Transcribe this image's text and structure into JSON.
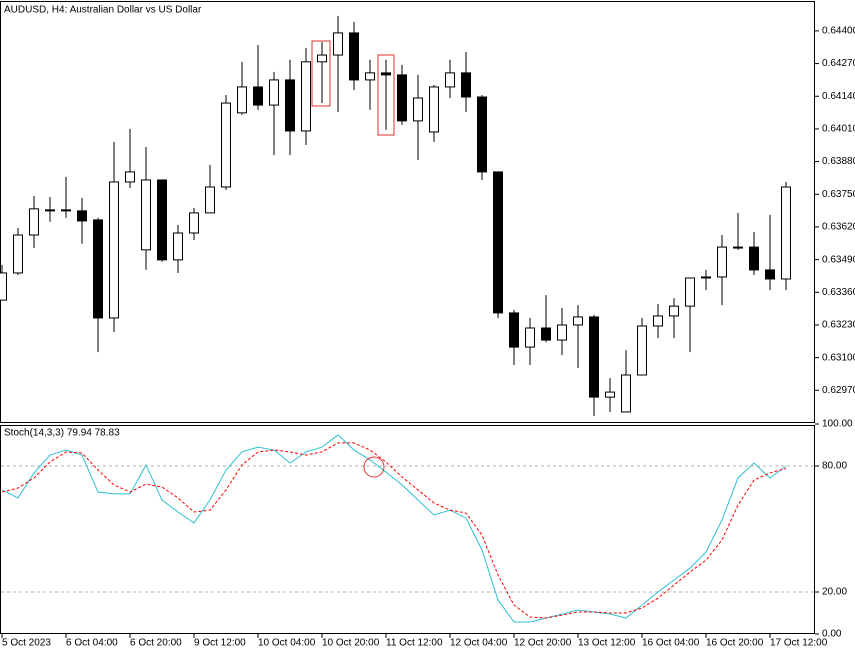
{
  "chart_data": [
    {
      "type": "candlestick",
      "title": "AUDUSD, H4:  Australian Dollar vs US Dollar",
      "up_color": "#ffffff",
      "down_color": "#000000",
      "open": [
        0.63329,
        0.63437,
        0.63588,
        0.63688,
        0.63688,
        0.63684,
        0.63648,
        0.63258,
        0.63799,
        0.63529,
        0.63807,
        0.63489,
        0.63596,
        0.63676,
        0.63779,
        0.64074,
        0.64177,
        0.64105,
        0.64205,
        0.64002,
        0.64277,
        0.64304,
        0.64392,
        0.64205,
        0.64233,
        0.64225,
        0.64042,
        0.63998,
        0.64177,
        0.64233,
        0.64137,
        0.63839,
        0.63278,
        0.63142,
        0.63218,
        0.6317,
        0.6323,
        0.63262,
        0.62943,
        0.62884,
        0.63031,
        0.63226,
        0.63266,
        0.63305,
        0.63421,
        0.63421,
        0.6354,
        0.6354,
        0.63449,
        0.63413
      ],
      "high": [
        0.63469,
        0.63616,
        0.63743,
        0.63739,
        0.63819,
        0.63735,
        0.63656,
        0.63958,
        0.6401,
        0.63938,
        0.63807,
        0.63628,
        0.63696,
        0.63867,
        0.64145,
        0.64277,
        0.64344,
        0.64237,
        0.64285,
        0.64332,
        0.64356,
        0.6446,
        0.64436,
        0.64285,
        0.64285,
        0.64265,
        0.64225,
        0.64185,
        0.64285,
        0.64316,
        0.64145,
        0.63839,
        0.6329,
        0.63258,
        0.63349,
        0.63298,
        0.63309,
        0.6327,
        0.63019,
        0.6313,
        0.63258,
        0.63313,
        0.63337,
        0.63417,
        0.63449,
        0.63588,
        0.63676,
        0.636,
        0.63668,
        0.63799
      ],
      "low": [
        0.63329,
        0.63429,
        0.63537,
        0.6364,
        0.63656,
        0.63553,
        0.63122,
        0.63202,
        0.63775,
        0.63449,
        0.63481,
        0.63437,
        0.63568,
        0.63676,
        0.63767,
        0.64066,
        0.64086,
        0.63906,
        0.63906,
        0.63946,
        0.64113,
        0.64078,
        0.64165,
        0.64086,
        0.64006,
        0.64026,
        0.63887,
        0.63958,
        0.64133,
        0.64078,
        0.63807,
        0.63258,
        0.63071,
        0.63071,
        0.63162,
        0.6311,
        0.63059,
        0.62868,
        0.62884,
        0.62884,
        0.63031,
        0.63178,
        0.63178,
        0.63122,
        0.63369,
        0.63309,
        0.63529,
        0.63429,
        0.63369,
        0.63369
      ],
      "close": [
        0.63437,
        0.63588,
        0.63692,
        0.63688,
        0.63688,
        0.63644,
        0.63258,
        0.63799,
        0.63839,
        0.63807,
        0.63489,
        0.63596,
        0.63676,
        0.63779,
        0.64113,
        0.64177,
        0.64105,
        0.64205,
        0.64002,
        0.64277,
        0.64304,
        0.64392,
        0.64205,
        0.64233,
        0.64225,
        0.64042,
        0.64133,
        0.64177,
        0.64233,
        0.64137,
        0.63839,
        0.63278,
        0.63142,
        0.63218,
        0.6317,
        0.6323,
        0.63262,
        0.62943,
        0.62963,
        0.63031,
        0.63226,
        0.63266,
        0.63305,
        0.63417,
        0.63421,
        0.6354,
        0.6354,
        0.63449,
        0.63413,
        0.63779
      ],
      "ylim": [
        0.62844,
        0.64515
      ],
      "yticks": [
        {
          "value": 0.644,
          "label": "0.64400"
        },
        {
          "value": 0.6427,
          "label": "0.64270"
        },
        {
          "value": 0.6414,
          "label": "0.64140"
        },
        {
          "value": 0.6401,
          "label": "0.64010"
        },
        {
          "value": 0.6388,
          "label": "0.63880"
        },
        {
          "value": 0.6375,
          "label": "0.63750"
        },
        {
          "value": 0.6362,
          "label": "0.63620"
        },
        {
          "value": 0.6349,
          "label": "0.63490"
        },
        {
          "value": 0.6336,
          "label": "0.63360"
        },
        {
          "value": 0.6323,
          "label": "0.63230"
        },
        {
          "value": 0.631,
          "label": "0.63100"
        },
        {
          "value": 0.6297,
          "label": "0.62970"
        }
      ],
      "grid": false
    },
    {
      "type": "line",
      "title": "Stoch(14,3,3) 79.94 78.83",
      "categories": [
        "5 Oct 2023",
        null,
        null,
        null,
        "6 Oct 04:00",
        null,
        null,
        null,
        "6 Oct 20:00",
        null,
        null,
        null,
        "9 Oct 12:00",
        null,
        null,
        null,
        "10 Oct 04:00",
        null,
        null,
        null,
        "10 Oct 20:00",
        null,
        null,
        null,
        "11 Oct 12:00",
        null,
        null,
        null,
        "12 Oct 04:00",
        null,
        null,
        null,
        "12 Oct 20:00",
        null,
        null,
        null,
        "13 Oct 12:00",
        null,
        null,
        null,
        "16 Oct 04:00",
        null,
        null,
        null,
        "16 Oct 20:00",
        null,
        null,
        null,
        "17 Oct 12:00",
        null
      ],
      "series": [
        {
          "color": "#2fbfd0",
          "dashed": false,
          "values": [
            68.6,
            64.8,
            76.7,
            85.2,
            87.6,
            85.2,
            67.6,
            66.7,
            66.7,
            80.5,
            63.8,
            58.1,
            52.9,
            63.8,
            78.1,
            86.7,
            89.0,
            87.6,
            81.4,
            86.7,
            89.0,
            94.8,
            87.6,
            82.9,
            77.1,
            71.0,
            63.8,
            56.7,
            59.0,
            55.2,
            40.0,
            16.2,
            5.7,
            5.7,
            7.6,
            9.5,
            11.4,
            10.5,
            9.5,
            7.6,
            13.8,
            20.0,
            25.7,
            31.4,
            39.0,
            54.3,
            74.3,
            81.4,
            74.3,
            79.94
          ]
        },
        {
          "color": "#ff0000",
          "dashed": true,
          "values": [
            67.6,
            69.5,
            74.3,
            81.9,
            86.7,
            86.2,
            78.1,
            71.0,
            67.6,
            71.4,
            70.0,
            64.8,
            58.1,
            59.0,
            68.6,
            80.5,
            86.7,
            87.6,
            86.7,
            85.2,
            86.7,
            91.0,
            91.0,
            87.6,
            81.9,
            74.8,
            68.6,
            62.4,
            59.0,
            57.6,
            47.1,
            28.1,
            13.8,
            8.1,
            7.6,
            9.0,
            10.5,
            10.5,
            10.0,
            10.0,
            12.4,
            17.1,
            23.3,
            29.5,
            35.2,
            44.8,
            61.4,
            73.3,
            76.7,
            78.83
          ]
        }
      ],
      "ylim": [
        0,
        100
      ],
      "yticks": [
        {
          "value": 100,
          "label": "100.00"
        },
        {
          "value": 80,
          "label": "80.00"
        },
        {
          "value": 20,
          "label": "20.00"
        },
        {
          "value": 0,
          "label": "0.00"
        }
      ],
      "grid": true
    }
  ]
}
